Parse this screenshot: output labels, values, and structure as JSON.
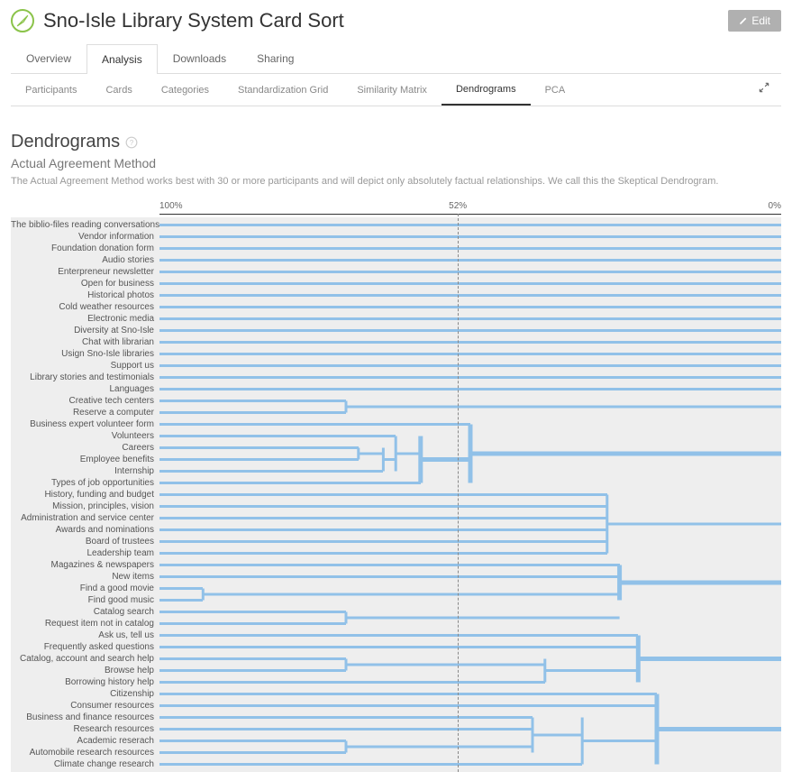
{
  "header": {
    "title": "Sno-Isle Library System Card Sort",
    "edit_label": "Edit"
  },
  "tabs_primary": [
    "Overview",
    "Analysis",
    "Downloads",
    "Sharing"
  ],
  "tabs_primary_active": 1,
  "tabs_secondary": [
    "Participants",
    "Cards",
    "Categories",
    "Standardization Grid",
    "Similarity Matrix",
    "Dendrograms",
    "PCA"
  ],
  "tabs_secondary_active": 5,
  "section": {
    "title": "Dendrograms",
    "subtitle": "Actual Agreement Method",
    "description": "The Actual Agreement Method works best with 30 or more participants and will depict only absolutely factual relationships. We call this the Skeptical Dendrogram."
  },
  "axis": {
    "left": "100%",
    "mid": "52%",
    "right": "0%",
    "threshold_pct": 48
  },
  "colors": {
    "bar": "#91c1e8",
    "bar_thick": "#7fb4e0",
    "bg": "#eeeeee",
    "accent": "#8bc34a"
  },
  "items": [
    {
      "label": "The biblio-files reading conversations",
      "start": 0,
      "end": 100
    },
    {
      "label": "Vendor information",
      "start": 0,
      "end": 100
    },
    {
      "label": "Foundation donation form",
      "start": 0,
      "end": 100
    },
    {
      "label": "Audio stories",
      "start": 0,
      "end": 100
    },
    {
      "label": "Enterpreneur newsletter",
      "start": 0,
      "end": 100
    },
    {
      "label": "Open for business",
      "start": 0,
      "end": 100
    },
    {
      "label": "Historical photos",
      "start": 0,
      "end": 100
    },
    {
      "label": "Cold weather resources",
      "start": 0,
      "end": 100
    },
    {
      "label": "Electronic media",
      "start": 0,
      "end": 100
    },
    {
      "label": "Diversity at Sno-Isle",
      "start": 0,
      "end": 100
    },
    {
      "label": "Chat with librarian",
      "start": 0,
      "end": 100
    },
    {
      "label": "Usign Sno-Isle libraries",
      "start": 0,
      "end": 100
    },
    {
      "label": "Support us",
      "start": 0,
      "end": 100
    },
    {
      "label": "Library stories and testimonials",
      "start": 0,
      "end": 100
    },
    {
      "label": "Languages",
      "start": 0,
      "end": 100
    },
    {
      "label": "Creative tech centers",
      "start": 0,
      "end": 30
    },
    {
      "label": "Reserve a computer",
      "start": 0,
      "end": 30
    },
    {
      "label": "Business expert volunteer form",
      "start": 0,
      "end": 50
    },
    {
      "label": "Volunteers",
      "start": 0,
      "end": 38
    },
    {
      "label": "Careers",
      "start": 0,
      "end": 32
    },
    {
      "label": "Employee benefits",
      "start": 0,
      "end": 32
    },
    {
      "label": "Internship",
      "start": 0,
      "end": 36
    },
    {
      "label": "Types of job opportunities",
      "start": 0,
      "end": 42
    },
    {
      "label": "History, funding and budget",
      "start": 0,
      "end": 72
    },
    {
      "label": "Mission, principles, vision",
      "start": 0,
      "end": 72
    },
    {
      "label": "Administration and service center",
      "start": 0,
      "end": 72
    },
    {
      "label": "Awards and nominations",
      "start": 0,
      "end": 72
    },
    {
      "label": "Board of trustees",
      "start": 0,
      "end": 72
    },
    {
      "label": "Leadership team",
      "start": 0,
      "end": 72
    },
    {
      "label": "Magazines & newspapers",
      "start": 0,
      "end": 74
    },
    {
      "label": "New items",
      "start": 0,
      "end": 74
    },
    {
      "label": "Find a good movie",
      "start": 0,
      "end": 7
    },
    {
      "label": "Find good music",
      "start": 0,
      "end": 7
    },
    {
      "label": "Catalog search",
      "start": 0,
      "end": 30
    },
    {
      "label": "Request item not in catalog",
      "start": 0,
      "end": 30
    },
    {
      "label": "Ask us, tell us",
      "start": 0,
      "end": 77
    },
    {
      "label": "Frequently asked questions",
      "start": 0,
      "end": 77
    },
    {
      "label": "Catalog, account and search help",
      "start": 0,
      "end": 30
    },
    {
      "label": "Browse help",
      "start": 0,
      "end": 30
    },
    {
      "label": "Borrowing history help",
      "start": 0,
      "end": 62
    },
    {
      "label": "Citizenship",
      "start": 0,
      "end": 80
    },
    {
      "label": "Consumer resources",
      "start": 0,
      "end": 80
    },
    {
      "label": "Business and finance resources",
      "start": 0,
      "end": 60
    },
    {
      "label": "Research resources",
      "start": 0,
      "end": 60
    },
    {
      "label": "Academic reserach",
      "start": 0,
      "end": 30
    },
    {
      "label": "Automobile research resources",
      "start": 0,
      "end": 30
    },
    {
      "label": "Climate change research",
      "start": 0,
      "end": 68
    }
  ],
  "joins": [
    {
      "rows": [
        15,
        16
      ],
      "at": 30,
      "out": 100
    },
    {
      "rows": [
        19,
        20
      ],
      "at": 32,
      "out": 36
    },
    {
      "rows": [
        19,
        21
      ],
      "at": 36,
      "out": 38
    },
    {
      "rows": [
        18,
        21
      ],
      "at": 38,
      "out": 42
    },
    {
      "rows": [
        18,
        22
      ],
      "at": 42,
      "out": 50,
      "thick": true
    },
    {
      "rows": [
        17,
        22
      ],
      "at": 50,
      "out": 100,
      "thick": true
    },
    {
      "rows": [
        23,
        28
      ],
      "at": 72,
      "out": 100
    },
    {
      "rows": [
        31,
        32
      ],
      "at": 7,
      "out": 74
    },
    {
      "rows": [
        29,
        32
      ],
      "at": 74,
      "out": 100,
      "thick": true
    },
    {
      "rows": [
        33,
        34
      ],
      "at": 30,
      "out": 74
    },
    {
      "rows": [
        37,
        38
      ],
      "at": 30,
      "out": 62
    },
    {
      "rows": [
        37,
        39
      ],
      "at": 62,
      "out": 77
    },
    {
      "rows": [
        35,
        39
      ],
      "at": 77,
      "out": 100,
      "thick": true
    },
    {
      "rows": [
        44,
        45
      ],
      "at": 30,
      "out": 60
    },
    {
      "rows": [
        42,
        45
      ],
      "at": 60,
      "out": 68
    },
    {
      "rows": [
        42,
        46
      ],
      "at": 68,
      "out": 80
    },
    {
      "rows": [
        40,
        46
      ],
      "at": 80,
      "out": 100,
      "thick": true
    }
  ]
}
